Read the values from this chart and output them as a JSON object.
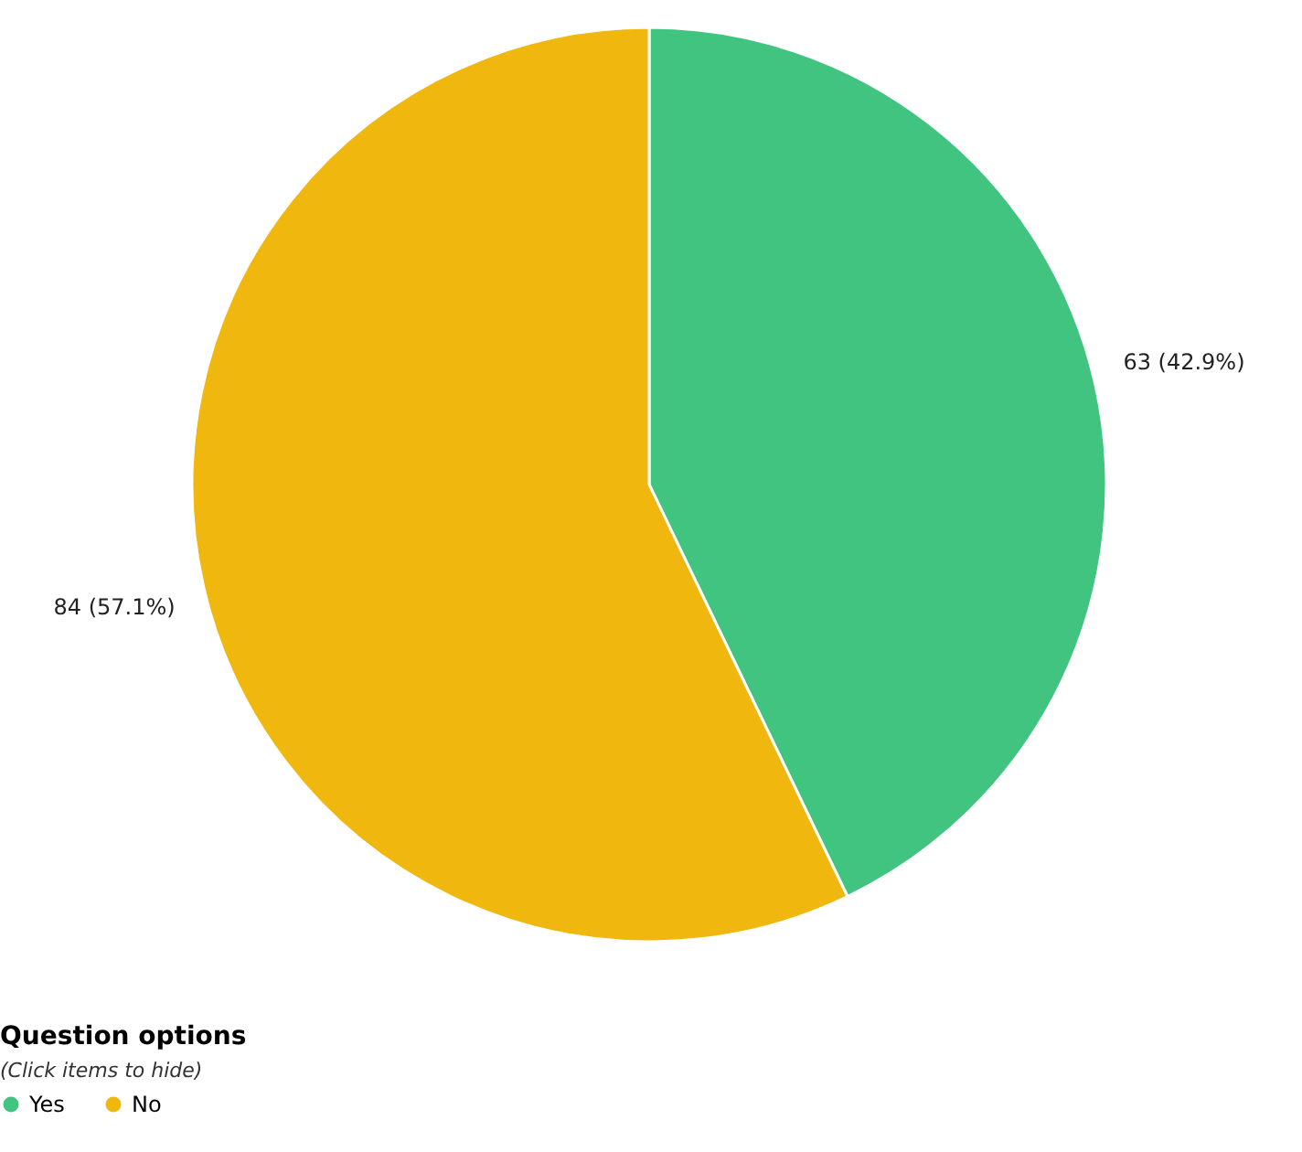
{
  "chart_data": {
    "type": "pie",
    "categories": [
      "Yes",
      "No"
    ],
    "values": [
      63,
      84
    ],
    "colors": [
      "#41c47f",
      "#f0b70f"
    ],
    "value_labels": [
      "63 (42.9%)",
      "84 (57.1%)"
    ],
    "legend_title": "Question options",
    "annotations": [
      "(Click items to hide)"
    ],
    "legend": "bottom left"
  }
}
